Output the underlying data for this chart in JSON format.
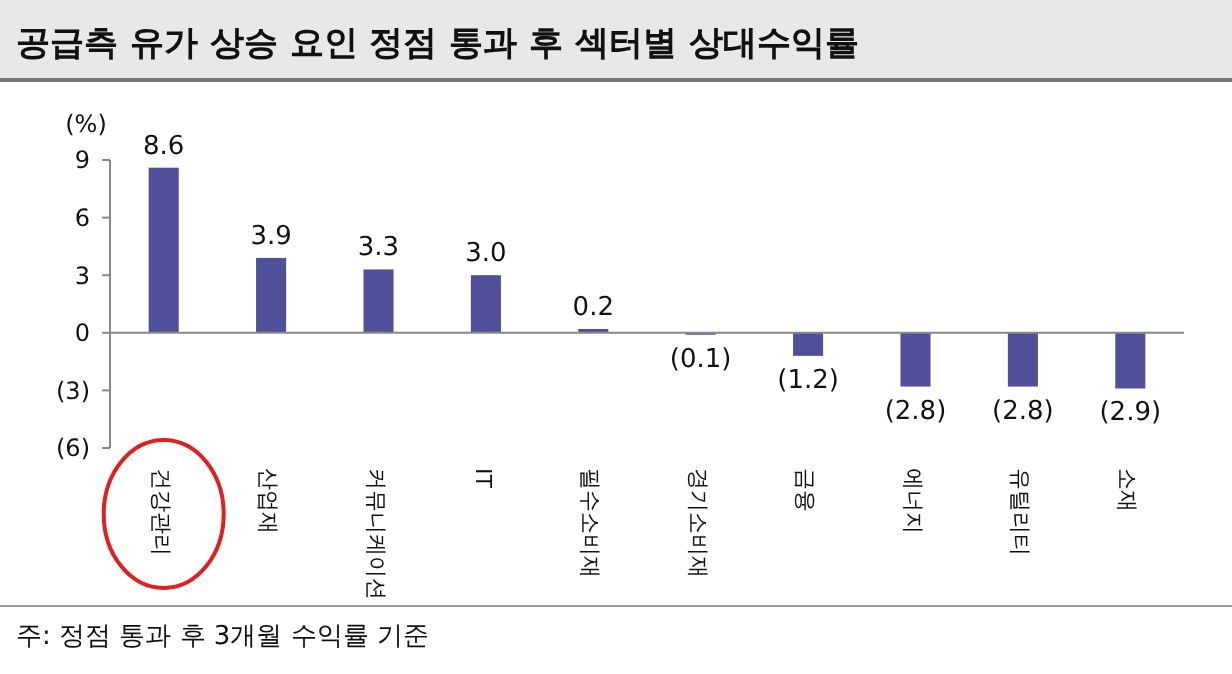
{
  "chart_data": {
    "type": "bar",
    "title": "공급측 유가 상승 요인 정점 통과 후 섹터별 상대수익률",
    "ylabel": "(%)",
    "categories": [
      "건강관리",
      "산업재",
      "커뮤니케이션",
      "IT",
      "필수소비재",
      "경기소비재",
      "금융",
      "에너지",
      "유틸리티",
      "소재"
    ],
    "values": [
      8.6,
      3.9,
      3.3,
      3.0,
      0.2,
      -0.1,
      -1.2,
      -2.8,
      -2.8,
      -2.9
    ],
    "value_labels": [
      "8.6",
      "3.9",
      "3.3",
      "3.0",
      "0.2",
      "(0.1)",
      "(1.2)",
      "(2.8)",
      "(2.8)",
      "(2.9)"
    ],
    "color": "#50509a",
    "ylim": [
      -6,
      9
    ],
    "yticks": [
      9,
      6,
      3,
      0,
      {
        "value": -3,
        "label": "(3)"
      },
      {
        "value": -6,
        "label": "(6)"
      }
    ],
    "annotations": [
      "주: 정점 통과 후 3개월 수익률 기준"
    ]
  }
}
